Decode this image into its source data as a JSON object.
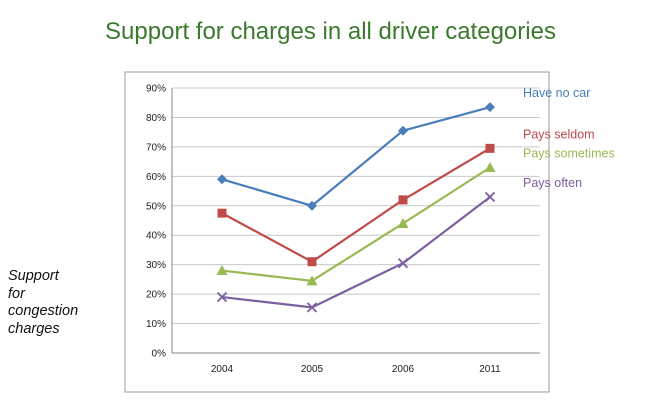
{
  "chart_data": {
    "type": "line",
    "title": "Support for charges in all driver categories",
    "ylabel_lines": [
      "Support",
      "for",
      "congestion",
      "charges"
    ],
    "categories": [
      "2004",
      "2005",
      "2006",
      "2011"
    ],
    "ylim": [
      0,
      90
    ],
    "yticks": [
      "0%",
      "10%",
      "20%",
      "30%",
      "40%",
      "50%",
      "60%",
      "70%",
      "80%",
      "90%"
    ],
    "grid": true,
    "legend": "right",
    "series": [
      {
        "name": "Have no car",
        "values": [
          59,
          50,
          75.5,
          83.5
        ],
        "color": "#4a7ebb",
        "marker": "diamond"
      },
      {
        "name": "Pays seldom",
        "values": [
          47.5,
          31,
          52,
          69.5
        ],
        "color": "#be4b48",
        "marker": "square"
      },
      {
        "name": "Pays sometimes",
        "values": [
          28,
          24.5,
          44,
          63
        ],
        "color": "#98b954",
        "marker": "triangle"
      },
      {
        "name": "Pays often",
        "values": [
          19,
          15.5,
          30.5,
          53
        ],
        "color": "#7d60a0",
        "marker": "x"
      }
    ]
  }
}
